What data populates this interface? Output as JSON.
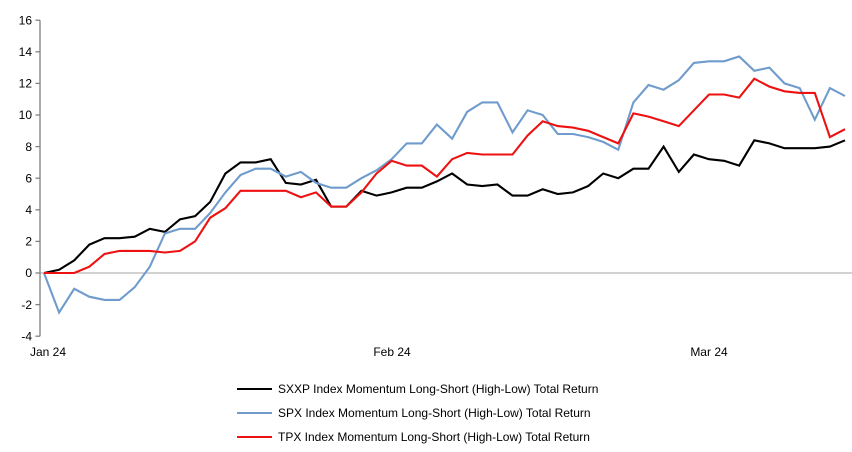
{
  "chart_data": {
    "type": "line",
    "title": "",
    "xlabel": "",
    "ylabel": "",
    "ylim": [
      -4,
      16
    ],
    "grid": "zero-line-only",
    "legend_position": "bottom",
    "axis_color": "#808080",
    "zero_line_color": "#a6a6a6",
    "y_axis": {
      "ticks": [
        16,
        14,
        12,
        10,
        8,
        6,
        4,
        2,
        0,
        -2,
        -4
      ]
    },
    "x_axis": {
      "tick_labels": [
        {
          "label": "Jan 24",
          "index": 0
        },
        {
          "label": "Feb 24",
          "index": 23
        },
        {
          "label": "Mar 24",
          "index": 44
        }
      ]
    },
    "series": [
      {
        "name": "SXXP Index Momentum Long-Short (High-Low) Total Return",
        "color": "#000000",
        "values": [
          0.0,
          0.2,
          0.8,
          1.8,
          2.2,
          2.2,
          2.3,
          2.8,
          2.6,
          3.4,
          3.6,
          4.5,
          6.3,
          7.0,
          7.0,
          7.2,
          5.7,
          5.6,
          5.9,
          4.2,
          4.2,
          5.2,
          4.9,
          5.1,
          5.4,
          5.4,
          5.8,
          6.3,
          5.6,
          5.5,
          5.6,
          4.9,
          4.9,
          5.3,
          5.0,
          5.1,
          5.5,
          6.3,
          6.0,
          6.6,
          6.6,
          8.0,
          6.4,
          7.5,
          7.2,
          7.1,
          6.8,
          8.4,
          8.2,
          7.9,
          7.9,
          7.9,
          8.0,
          8.4
        ]
      },
      {
        "name": "SPX Index Momentum Long-Short (High-Low) Total Return",
        "color": "#6f9ccc",
        "values": [
          0.0,
          -2.5,
          -1.0,
          -1.5,
          -1.7,
          -1.7,
          -0.9,
          0.4,
          2.5,
          2.8,
          2.8,
          3.8,
          5.1,
          6.2,
          6.6,
          6.6,
          6.1,
          6.4,
          5.7,
          5.4,
          5.4,
          6.0,
          6.5,
          7.2,
          8.2,
          8.2,
          9.4,
          8.5,
          10.2,
          10.8,
          10.8,
          8.9,
          10.3,
          10.0,
          8.8,
          8.8,
          8.6,
          8.3,
          7.8,
          10.8,
          11.9,
          11.6,
          12.2,
          13.3,
          13.4,
          13.4,
          13.7,
          12.8,
          13.0,
          12.0,
          11.7,
          9.7,
          11.7,
          11.2
        ]
      },
      {
        "name": "TPX Index Momentum Long-Short (High-Low) Total Return",
        "color": "#ee1111",
        "values": [
          0.0,
          0.0,
          0.0,
          0.4,
          1.2,
          1.4,
          1.4,
          1.4,
          1.3,
          1.4,
          2.0,
          3.5,
          4.1,
          5.2,
          5.2,
          5.2,
          5.2,
          4.8,
          5.1,
          4.2,
          4.2,
          5.1,
          6.3,
          7.1,
          6.8,
          6.8,
          6.1,
          7.2,
          7.6,
          7.5,
          7.5,
          7.5,
          8.7,
          9.6,
          9.3,
          9.2,
          9.0,
          8.6,
          8.2,
          10.1,
          9.9,
          9.6,
          9.3,
          10.3,
          11.3,
          11.3,
          11.1,
          12.3,
          11.8,
          11.5,
          11.4,
          11.4,
          8.6,
          9.1
        ]
      }
    ]
  }
}
